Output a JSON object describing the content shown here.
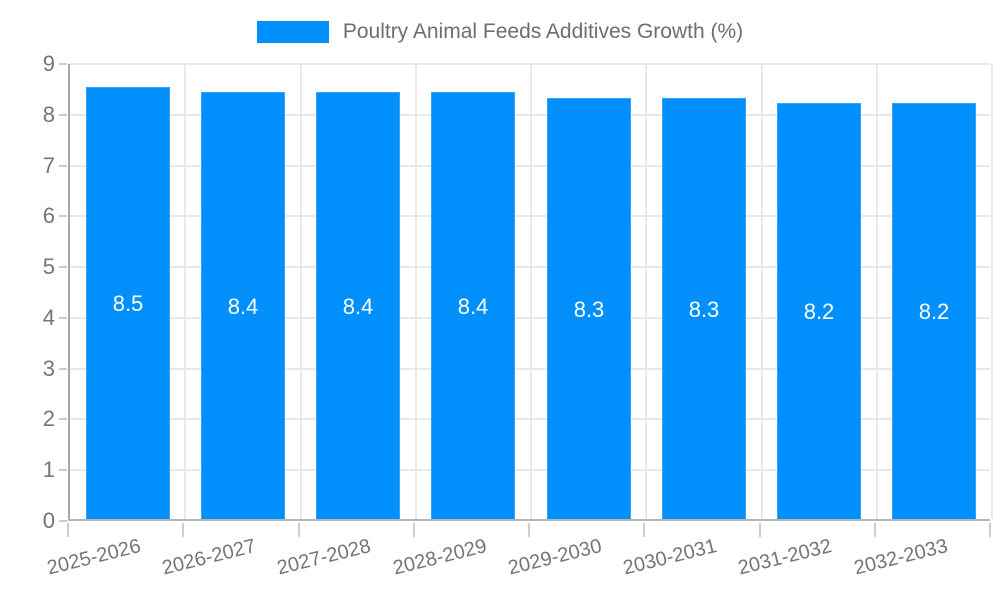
{
  "legend": {
    "label": "Poultry Animal Feeds Additives Growth (%)"
  },
  "colors": {
    "bar": "#008FFB",
    "bar_edge": "#35a4fc",
    "grid": "#e9e9e9",
    "axis": "#b0b0b0",
    "tick": "#cccccc",
    "tick_text": "#757575",
    "legend_text": "#6e6e6e",
    "value_label_text": "#ffffff",
    "background": "#ffffff"
  },
  "chart_data": {
    "type": "bar",
    "title": "Poultry Animal Feeds Additives Growth (%)",
    "categories": [
      "2025-2026",
      "2026-2027",
      "2027-2028",
      "2028-2029",
      "2029-2030",
      "2030-2031",
      "2031-2032",
      "2032-2033"
    ],
    "values": [
      8.5,
      8.4,
      8.4,
      8.4,
      8.3,
      8.3,
      8.2,
      8.2
    ],
    "value_labels": [
      "8.5",
      "8.4",
      "8.4",
      "8.4",
      "8.3",
      "8.3",
      "8.2",
      "8.2"
    ],
    "xlabel": "",
    "ylabel": "",
    "ylim": [
      0,
      9
    ],
    "yticks": [
      0,
      1,
      2,
      3,
      4,
      5,
      6,
      7,
      8,
      9
    ],
    "grid": true,
    "legend_position": "top",
    "value_labels_position": "center",
    "x_label_rotation_deg": -14
  }
}
